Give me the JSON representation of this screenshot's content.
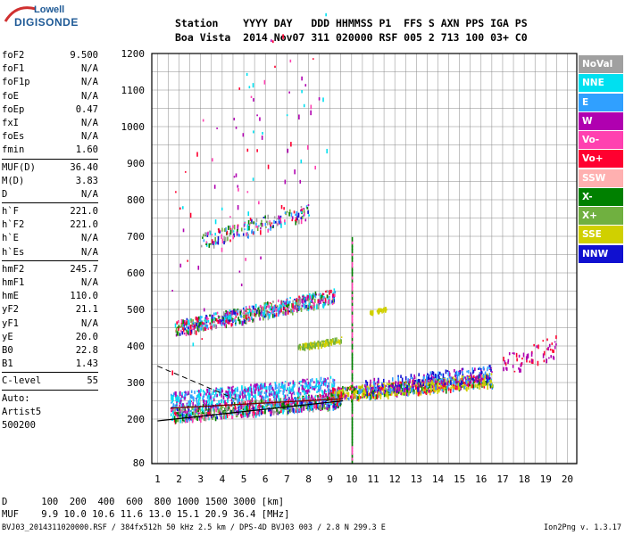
{
  "logo": {
    "top": "Lowell",
    "bottom": "DIGISONDE"
  },
  "header": {
    "line1": "Station    YYYY DAY   DDD HHMMSS P1  FFS S AXN PPS IGA PS",
    "line2": "Boa Vista  2014 Nov07 311 020000 RSF 005 2 713 100 03+ C0"
  },
  "params": {
    "group1": [
      {
        "k": "foF2",
        "v": "9.500"
      },
      {
        "k": "foF1",
        "v": "N/A"
      },
      {
        "k": "foF1p",
        "v": "N/A"
      },
      {
        "k": "foE",
        "v": "N/A"
      },
      {
        "k": "foEp",
        "v": "0.47"
      },
      {
        "k": "fxI",
        "v": "N/A"
      },
      {
        "k": "foEs",
        "v": "N/A"
      },
      {
        "k": "fmin",
        "v": "1.60"
      }
    ],
    "group2": [
      {
        "k": "MUF(D)",
        "v": "36.40"
      },
      {
        "k": "M(D)",
        "v": "3.83"
      },
      {
        "k": "D",
        "v": "N/A"
      }
    ],
    "group3": [
      {
        "k": "h`F",
        "v": "221.0"
      },
      {
        "k": "h`F2",
        "v": "221.0"
      },
      {
        "k": "h`E",
        "v": "N/A"
      },
      {
        "k": "h`Es",
        "v": "N/A"
      }
    ],
    "group4": [
      {
        "k": "hmF2",
        "v": "245.7"
      },
      {
        "k": "hmF1",
        "v": "N/A"
      },
      {
        "k": "hmE",
        "v": "110.0"
      },
      {
        "k": "yF2",
        "v": "21.1"
      },
      {
        "k": "yF1",
        "v": "N/A"
      },
      {
        "k": "yE",
        "v": "20.0"
      },
      {
        "k": "B0",
        "v": "22.8"
      },
      {
        "k": "B1",
        "v": "1.43"
      }
    ],
    "group5": [
      {
        "k": "C-level",
        "v": "55"
      }
    ],
    "auto": [
      "Auto:",
      "Artist5",
      "500200"
    ]
  },
  "axes": {
    "x_ticks": [
      "1",
      "2",
      "3",
      "4",
      "5",
      "6",
      "7",
      "8",
      "9",
      "10",
      "11",
      "12",
      "13",
      "14",
      "15",
      "16",
      "17",
      "18",
      "19",
      "20"
    ],
    "y_ticks": [
      "80",
      "200",
      "300",
      "400",
      "500",
      "600",
      "700",
      "800",
      "900",
      "1000",
      "1100",
      "1200"
    ]
  },
  "legend": [
    {
      "label": "NoVal",
      "color": "#a0a0a0"
    },
    {
      "label": "NNE",
      "color": "#00e0f0"
    },
    {
      "label": "E",
      "color": "#30a0ff"
    },
    {
      "label": "W",
      "color": "#b000b0"
    },
    {
      "label": "Vo-",
      "color": "#ff40b0"
    },
    {
      "label": "Vo+",
      "color": "#ff0030"
    },
    {
      "label": "SSW",
      "color": "#ffb0b0"
    },
    {
      "label": "X-",
      "color": "#008000"
    },
    {
      "label": "X+",
      "color": "#70b040"
    },
    {
      "label": "SSE",
      "color": "#d0d000"
    },
    {
      "label": "NNW",
      "color": "#1010d0"
    }
  ],
  "footer": {
    "d_row": "D      100  200  400  600  800 1000 1500 3000 [km]",
    "muf_row": "MUF    9.9 10.0 10.6 11.6 13.0 15.1 20.9 36.4 [MHz]",
    "info": "BVJ03_2014311020000.RSF / 384fx512h 50 kHz 2.5 km / DPS-4D BVJ03 003 / 2.8 N 299.3 E",
    "version": "Ion2Png v. 1.3.17"
  }
}
